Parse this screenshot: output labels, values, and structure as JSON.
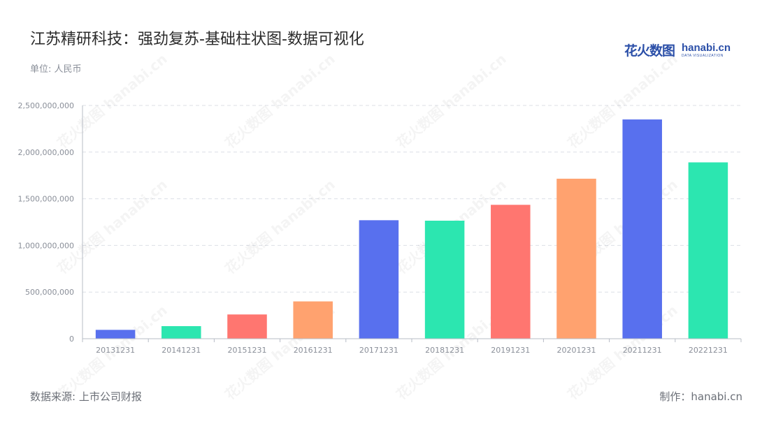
{
  "title": "江苏精研科技：强劲复苏-基础柱状图-数据可视化",
  "unit_label": "单位: 人民币",
  "logo": {
    "cn": "花火数图",
    "en": "hanabi.cn",
    "sub": "DATA VISUALIZATION"
  },
  "watermark_text": "花火数图 hanabi.cn",
  "footer": {
    "source": "数据来源: 上市公司财报",
    "credit": "制作：hanabi.cn"
  },
  "chart_data": {
    "type": "bar",
    "categories": [
      "20131231",
      "20141231",
      "20151231",
      "20161231",
      "20171231",
      "20181231",
      "20191231",
      "20201231",
      "20211231",
      "20221231"
    ],
    "values": [
      95000000,
      135000000,
      260000000,
      400000000,
      1270000000,
      1265000000,
      1435000000,
      1715000000,
      2350000000,
      1890000000
    ],
    "colors": [
      "#5870ee",
      "#2ce6b0",
      "#ff7670",
      "#ffa26f",
      "#5870ee",
      "#2ce6b0",
      "#ff7670",
      "#ffa26f",
      "#5870ee",
      "#2ce6b0"
    ],
    "ylim": [
      0,
      2500000000
    ],
    "yticks": [
      0,
      500000000,
      1000000000,
      1500000000,
      2000000000,
      2500000000
    ],
    "ytick_labels": [
      "0",
      "500,000,000",
      "1,000,000,000",
      "1,500,000,000",
      "2,000,000,000",
      "2,500,000,000"
    ],
    "grid": true,
    "xlabel": "",
    "ylabel": ""
  }
}
